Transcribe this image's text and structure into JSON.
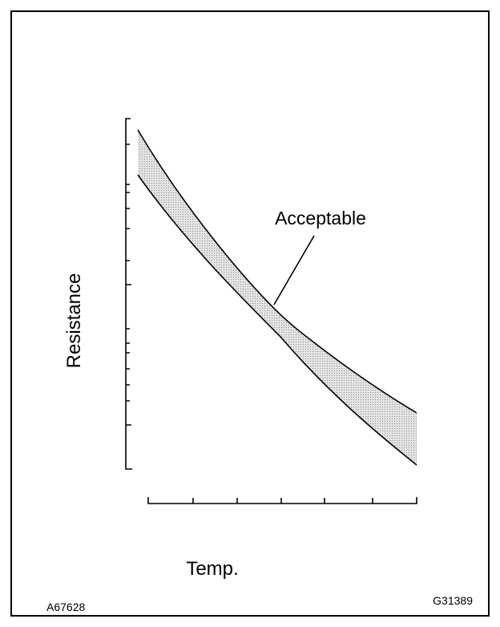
{
  "label": "Acceptable",
  "y_axis_label": "Resistance",
  "x_axis_label": "Temp.",
  "codes": {
    "left": "A67628",
    "right": "G31389"
  }
}
